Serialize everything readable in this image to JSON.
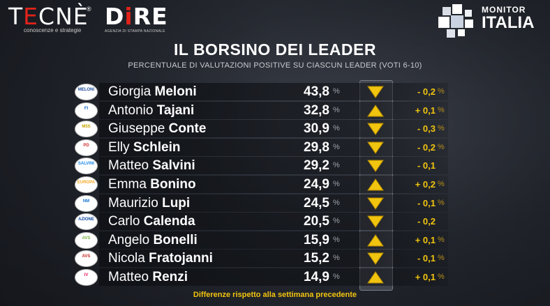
{
  "header": {
    "tecne": {
      "brand_pre": "T",
      "brand_accent": "E",
      "brand_post": "CNÈ",
      "reg": "®",
      "tagline": "conoscenze e strategie"
    },
    "dire": {
      "brand_pre": "D",
      "brand_accent": "i",
      "brand_post": "RE",
      "tagline": "AGENZIA DI STAMPA NAZIONALE"
    },
    "monitor": {
      "line1": "MONITOR",
      "line2": "ITALIA"
    }
  },
  "colors": {
    "accent_red": "#e2231a",
    "arrow_gold": "#f1c40f",
    "positive_and_negative": "#f1c40f"
  },
  "chart_data": {
    "type": "table",
    "title": "IL BORSINO DEI LEADER",
    "subtitle": "PERCENTUALE DI VALUTAZIONI POSITIVE SU CIASCUN LEADER (VOTI 6-10)",
    "footnote": "Differenze rispetto alla settimana precedente",
    "unit": "%",
    "rows": [
      {
        "first": "Giorgia",
        "last": "Meloni",
        "value": "43,8",
        "direction": "down",
        "delta": "- 0,2",
        "delta_unit": "%",
        "party": "MELONI",
        "party_color": "#1a4a9c"
      },
      {
        "first": "Antonio",
        "last": "Tajani",
        "value": "32,8",
        "direction": "up",
        "delta": "+ 0,1",
        "delta_unit": "%",
        "party": "FI",
        "party_color": "#1565c0"
      },
      {
        "first": "Giuseppe",
        "last": "Conte",
        "value": "30,9",
        "direction": "down",
        "delta": "- 0,3",
        "delta_unit": "%",
        "party": "M5S",
        "party_color": "#c8a200"
      },
      {
        "first": "Elly",
        "last": "Schlein",
        "value": "29,8",
        "direction": "down",
        "delta": "- 0,2",
        "delta_unit": "%",
        "party": "PD",
        "party_color": "#d32f2f"
      },
      {
        "first": "Matteo",
        "last": "Salvini",
        "value": "29,2",
        "direction": "down",
        "delta": "- 0,1",
        "delta_unit": "",
        "party": "SALVINI",
        "party_color": "#1e88e5"
      },
      {
        "first": "Emma",
        "last": "Bonino",
        "value": "24,9",
        "direction": "up",
        "delta": "+ 0,2",
        "delta_unit": "%",
        "party": "EUROPA",
        "party_color": "#f9a825"
      },
      {
        "first": "Maurizio",
        "last": "Lupi",
        "value": "24,5",
        "direction": "down",
        "delta": "- 0,1",
        "delta_unit": "%",
        "party": "NM",
        "party_color": "#1976d2"
      },
      {
        "first": "Carlo",
        "last": "Calenda",
        "value": "20,5",
        "direction": "down",
        "delta": "- 0,2",
        "delta_unit": "",
        "party": "AZIONE",
        "party_color": "#0d47a1"
      },
      {
        "first": "Angelo",
        "last": "Bonelli",
        "value": "15,9",
        "direction": "up",
        "delta": "+ 0,1",
        "delta_unit": "%",
        "party": "AVS",
        "party_color": "#7cb342"
      },
      {
        "first": "Nicola",
        "last": "Fratojanni",
        "value": "15,2",
        "direction": "down",
        "delta": "- 0,1",
        "delta_unit": "%",
        "party": "AVS",
        "party_color": "#c62828"
      },
      {
        "first": "Matteo",
        "last": "Renzi",
        "value": "14,9",
        "direction": "up",
        "delta": "+ 0,1",
        "delta_unit": "%",
        "party": "IV",
        "party_color": "#e91e63"
      }
    ]
  }
}
